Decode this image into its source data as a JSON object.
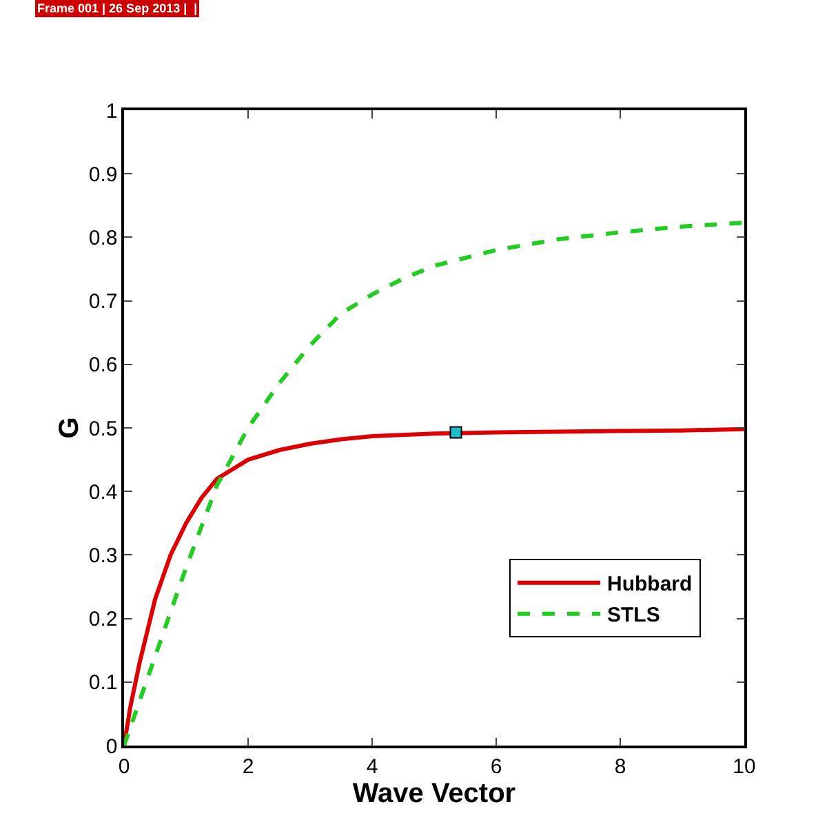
{
  "chart_data": {
    "type": "line",
    "xlabel": "Wave Vector",
    "ylabel": "G",
    "annotations": [
      "Frame 001 | 26 Sep 2013 |  |"
    ],
    "series": [
      {
        "name": "Hubbard",
        "color": "#dd0000",
        "line_style": "solid",
        "x": [
          0,
          0.1,
          0.25,
          0.5,
          0.75,
          1,
          1.25,
          1.5,
          1.75,
          2,
          2.5,
          3,
          3.5,
          4,
          5,
          6,
          7,
          8,
          9,
          10
        ],
        "values": [
          0,
          0.06,
          0.13,
          0.23,
          0.3,
          0.35,
          0.39,
          0.42,
          0.435,
          0.45,
          0.465,
          0.475,
          0.482,
          0.487,
          0.491,
          0.493,
          0.494,
          0.495,
          0.496,
          0.498
        ]
      },
      {
        "name": "STLS",
        "color": "#22cc22",
        "line_style": "dashed",
        "x": [
          0,
          0.5,
          1,
          1.5,
          2,
          2.5,
          3,
          3.5,
          4,
          4.5,
          5,
          6,
          7,
          8,
          9,
          10
        ],
        "values": [
          0,
          0.14,
          0.28,
          0.41,
          0.5,
          0.57,
          0.63,
          0.68,
          0.71,
          0.735,
          0.755,
          0.78,
          0.797,
          0.808,
          0.817,
          0.823
        ]
      },
      {
        "type": "scatter",
        "marker": "square",
        "color": "#22bbcc",
        "x": [
          5.35
        ],
        "values": [
          0.493
        ]
      }
    ],
    "xlim": [
      0,
      10
    ],
    "xticks": [
      0,
      2,
      4,
      6,
      8,
      10
    ],
    "ylim": [
      0,
      1
    ],
    "yticks": [
      0,
      0.1,
      0.2,
      0.3,
      0.4,
      0.5,
      0.6,
      0.7,
      0.8,
      0.9,
      1
    ],
    "grid": false,
    "legend": "bottom right"
  }
}
